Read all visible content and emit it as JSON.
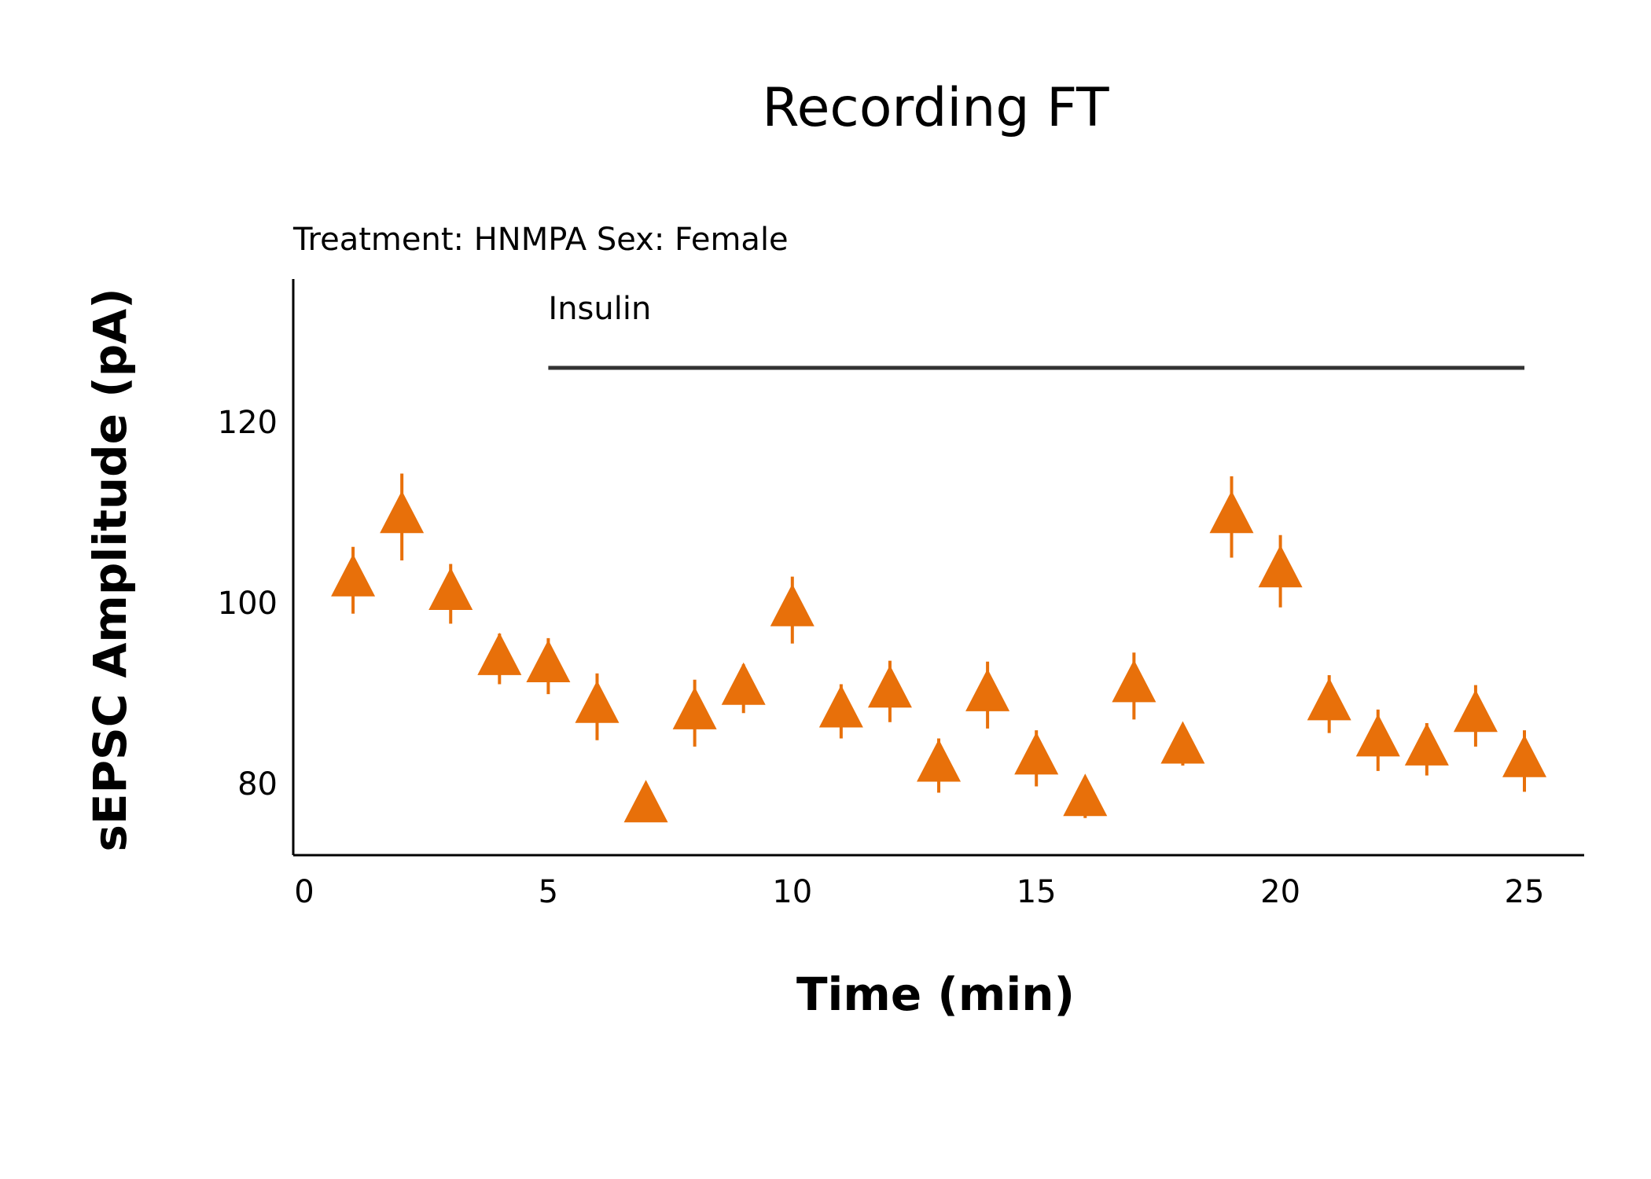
{
  "chart_data": {
    "type": "scatter",
    "title": "Recording FT",
    "subtitle": "Treatment: HNMPA  Sex: Female",
    "xlabel": "Time (min)",
    "ylabel": "sEPSC Amplitude (pA)",
    "xlim": [
      -0.5,
      26
    ],
    "ylim": [
      72,
      135
    ],
    "xticks": [
      0,
      5,
      10,
      15,
      20,
      25
    ],
    "yticks": [
      80,
      100,
      120
    ],
    "grid": false,
    "legend": "none",
    "series": [
      {
        "color": "#e8700a",
        "marker": "triangle",
        "points": [
          {
            "x": 1,
            "y": 102.5,
            "err": 3.7
          },
          {
            "x": 2,
            "y": 109.5,
            "err": 4.8
          },
          {
            "x": 3,
            "y": 101.0,
            "err": 3.3
          },
          {
            "x": 4,
            "y": 93.8,
            "err": 2.8
          },
          {
            "x": 5,
            "y": 93.0,
            "err": 3.1
          },
          {
            "x": 6,
            "y": 88.5,
            "err": 3.7
          },
          {
            "x": 7,
            "y": 77.5,
            "err": 1.5
          },
          {
            "x": 8,
            "y": 87.8,
            "err": 3.7
          },
          {
            "x": 9,
            "y": 90.5,
            "err": 2.7
          },
          {
            "x": 10,
            "y": 99.2,
            "err": 3.7
          },
          {
            "x": 11,
            "y": 88.0,
            "err": 3.0
          },
          {
            "x": 12,
            "y": 90.2,
            "err": 3.4
          },
          {
            "x": 13,
            "y": 82.0,
            "err": 3.0
          },
          {
            "x": 14,
            "y": 89.8,
            "err": 3.7
          },
          {
            "x": 15,
            "y": 82.8,
            "err": 3.1
          },
          {
            "x": 16,
            "y": 78.2,
            "err": 2.0
          },
          {
            "x": 17,
            "y": 90.8,
            "err": 3.7
          },
          {
            "x": 18,
            "y": 84.0,
            "err": 2.0
          },
          {
            "x": 19,
            "y": 109.5,
            "err": 4.5
          },
          {
            "x": 20,
            "y": 103.5,
            "err": 4.0
          },
          {
            "x": 21,
            "y": 88.8,
            "err": 3.2
          },
          {
            "x": 22,
            "y": 84.8,
            "err": 3.4
          },
          {
            "x": 23,
            "y": 83.8,
            "err": 2.9
          },
          {
            "x": 24,
            "y": 87.5,
            "err": 3.4
          },
          {
            "x": 25,
            "y": 82.5,
            "err": 3.4
          }
        ]
      }
    ],
    "annotation": {
      "label": "Insulin",
      "x_start": 5,
      "x_end": 25,
      "y": 126
    }
  }
}
